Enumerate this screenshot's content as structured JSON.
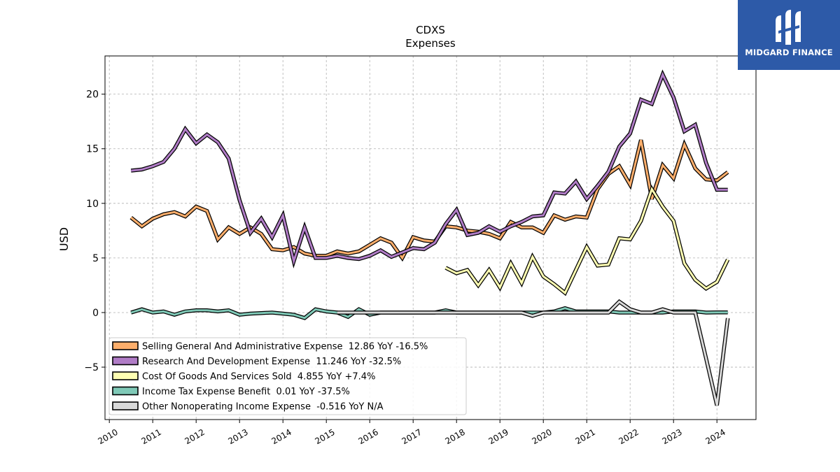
{
  "brand": {
    "name": "MIDGARD FINANCE",
    "logo_icon": "midgard-logo-icon",
    "bg_color": "#2d5aa8"
  },
  "chart_data": {
    "type": "line",
    "title": "CDXS",
    "subtitle": "Expenses",
    "ylabel": "USD",
    "xlabel": "",
    "xlim": [
      2009.9,
      2024.9
    ],
    "ylim": [
      -9.8,
      23.5
    ],
    "yticks": [
      -5,
      0,
      5,
      10,
      15,
      20
    ],
    "xticks": [
      2010,
      2011,
      2012,
      2013,
      2014,
      2015,
      2016,
      2017,
      2018,
      2019,
      2020,
      2021,
      2022,
      2023,
      2024
    ],
    "grid": true,
    "legend_position": "lower-left",
    "series": [
      {
        "name": "Selling General And Administrative Expense",
        "legend_label": "Selling General And Administrative Expense  12.86 YoY -16.5%",
        "color": "#fdae6b",
        "x": [
          2010.5,
          2010.75,
          2011.0,
          2011.25,
          2011.5,
          2011.75,
          2012.0,
          2012.25,
          2012.5,
          2012.75,
          2013.0,
          2013.25,
          2013.5,
          2013.75,
          2014.0,
          2014.25,
          2014.5,
          2014.75,
          2015.0,
          2015.25,
          2015.5,
          2015.75,
          2016.0,
          2016.25,
          2016.5,
          2016.75,
          2017.0,
          2017.25,
          2017.5,
          2017.75,
          2018.0,
          2018.25,
          2018.5,
          2018.75,
          2019.0,
          2019.25,
          2019.5,
          2019.75,
          2020.0,
          2020.25,
          2020.5,
          2020.75,
          2021.0,
          2021.25,
          2021.5,
          2021.75,
          2022.0,
          2022.25,
          2022.5,
          2022.75,
          2023.0,
          2023.25,
          2023.5,
          2023.75,
          2024.0,
          2024.25
        ],
        "y": [
          8.7,
          7.9,
          8.6,
          9.0,
          9.2,
          8.8,
          9.7,
          9.3,
          6.7,
          7.8,
          7.2,
          7.8,
          7.2,
          5.8,
          5.7,
          6.0,
          5.4,
          5.2,
          5.2,
          5.6,
          5.4,
          5.6,
          6.2,
          6.8,
          6.4,
          5.0,
          6.9,
          6.6,
          6.5,
          7.9,
          7.8,
          7.5,
          7.4,
          7.2,
          6.8,
          8.3,
          7.8,
          7.8,
          7.3,
          8.9,
          8.5,
          8.8,
          8.7,
          11.3,
          12.7,
          13.4,
          11.7,
          15.8,
          10.4,
          13.5,
          12.3,
          15.4,
          13.2,
          12.2,
          12.1,
          12.86
        ]
      },
      {
        "name": "Research And Development Expense",
        "legend_label": "Research And Development Expense  11.246 YoY -32.5%",
        "color": "#b07cc6",
        "x": [
          2010.5,
          2010.75,
          2011.0,
          2011.25,
          2011.5,
          2011.75,
          2012.0,
          2012.25,
          2012.5,
          2012.75,
          2013.0,
          2013.25,
          2013.5,
          2013.75,
          2014.0,
          2014.25,
          2014.5,
          2014.75,
          2015.0,
          2015.25,
          2015.5,
          2015.75,
          2016.0,
          2016.25,
          2016.5,
          2016.75,
          2017.0,
          2017.25,
          2017.5,
          2017.75,
          2018.0,
          2018.25,
          2018.5,
          2018.75,
          2019.0,
          2019.25,
          2019.5,
          2019.75,
          2020.0,
          2020.25,
          2020.5,
          2020.75,
          2021.0,
          2021.25,
          2021.5,
          2021.75,
          2022.0,
          2022.25,
          2022.5,
          2022.75,
          2023.0,
          2023.25,
          2023.5,
          2023.75,
          2024.0,
          2024.25
        ],
        "y": [
          13.0,
          13.1,
          13.4,
          13.8,
          15.0,
          16.8,
          15.5,
          16.3,
          15.6,
          14.1,
          10.3,
          7.3,
          8.6,
          6.9,
          8.9,
          4.7,
          7.8,
          5.0,
          5.0,
          5.2,
          5.0,
          4.9,
          5.2,
          5.7,
          5.1,
          5.5,
          5.9,
          5.8,
          6.4,
          8.1,
          9.4,
          7.1,
          7.3,
          7.9,
          7.4,
          7.9,
          8.3,
          8.8,
          8.9,
          11.0,
          10.9,
          12.0,
          10.4,
          11.6,
          12.9,
          15.2,
          16.4,
          19.5,
          19.1,
          21.8,
          19.7,
          16.6,
          17.2,
          13.7,
          11.246,
          11.246
        ]
      },
      {
        "name": "Cost Of Goods And Services Sold",
        "legend_label": "Cost Of Goods And Services Sold  4.855 YoY +7.4%",
        "color": "#ffffb2",
        "x": [
          2017.75,
          2018.0,
          2018.25,
          2018.5,
          2018.75,
          2019.0,
          2019.25,
          2019.5,
          2019.75,
          2020.0,
          2020.25,
          2020.5,
          2020.75,
          2021.0,
          2021.25,
          2021.5,
          2021.75,
          2022.0,
          2022.25,
          2022.5,
          2022.75,
          2023.0,
          2023.25,
          2023.5,
          2023.75,
          2024.0,
          2024.25
        ],
        "y": [
          4.1,
          3.6,
          3.9,
          2.5,
          3.9,
          2.3,
          4.5,
          2.7,
          5.1,
          3.3,
          2.6,
          1.8,
          3.9,
          6.0,
          4.3,
          4.4,
          6.8,
          6.7,
          8.4,
          11.3,
          9.7,
          8.4,
          4.5,
          3.0,
          2.2,
          2.8,
          4.855
        ]
      },
      {
        "name": "Income Tax Expense Benefit",
        "legend_label": "Income Tax Expense Benefit  0.01 YoY -37.5%",
        "color": "#7fc9b7",
        "x": [
          2010.5,
          2010.75,
          2011.0,
          2011.25,
          2011.5,
          2011.75,
          2012.0,
          2012.25,
          2012.5,
          2012.75,
          2013.0,
          2013.25,
          2013.5,
          2013.75,
          2014.0,
          2014.25,
          2014.5,
          2014.75,
          2015.0,
          2015.25,
          2015.5,
          2015.75,
          2016.0,
          2016.25,
          2016.5,
          2016.75,
          2017.0,
          2017.25,
          2017.5,
          2017.75,
          2018.0,
          2018.25,
          2018.5,
          2018.75,
          2019.0,
          2019.25,
          2019.5,
          2019.75,
          2020.0,
          2020.25,
          2020.5,
          2020.75,
          2021.0,
          2021.25,
          2021.5,
          2021.75,
          2022.0,
          2022.25,
          2022.5,
          2022.75,
          2023.0,
          2023.25,
          2023.5,
          2023.75,
          2024.0,
          2024.25
        ],
        "y": [
          0.0,
          0.3,
          0.0,
          0.1,
          -0.2,
          0.1,
          0.2,
          0.2,
          0.1,
          0.2,
          -0.2,
          -0.1,
          -0.05,
          0.0,
          -0.1,
          -0.2,
          -0.5,
          0.3,
          0.1,
          0.0,
          -0.4,
          0.3,
          -0.2,
          0.0,
          0.0,
          0.0,
          0.0,
          0.0,
          0.0,
          0.2,
          0.0,
          0.0,
          0.0,
          0.0,
          0.0,
          0.0,
          0.0,
          0.0,
          0.0,
          0.1,
          0.4,
          0.1,
          0.1,
          0.1,
          0.1,
          0.0,
          0.0,
          0.0,
          0.0,
          0.0,
          0.1,
          0.1,
          0.1,
          0.0,
          0.01,
          0.01
        ]
      },
      {
        "name": "Other Nonoperating Income Expense",
        "legend_label": "Other Nonoperating Income Expense  -0.516 YoY N/A",
        "color": "#d9d9d9",
        "x": [
          2015.25,
          2015.5,
          2015.75,
          2016.0,
          2016.25,
          2016.5,
          2016.75,
          2017.0,
          2017.25,
          2017.5,
          2017.75,
          2018.0,
          2018.25,
          2018.5,
          2018.75,
          2019.0,
          2019.25,
          2019.5,
          2019.75,
          2020.0,
          2020.25,
          2020.5,
          2020.75,
          2021.0,
          2021.25,
          2021.5,
          2021.75,
          2022.0,
          2022.25,
          2022.5,
          2022.75,
          2023.0,
          2023.25,
          2023.5,
          2023.75,
          2024.0,
          2024.25
        ],
        "y": [
          0.0,
          0.0,
          0.0,
          0.0,
          0.0,
          0.0,
          0.0,
          0.0,
          0.0,
          0.0,
          0.0,
          0.0,
          0.0,
          0.0,
          0.0,
          0.0,
          0.0,
          0.0,
          -0.3,
          0.0,
          0.0,
          0.0,
          0.0,
          0.0,
          0.0,
          0.0,
          1.0,
          0.3,
          0.0,
          0.0,
          0.3,
          0.0,
          0.0,
          0.0,
          -4.2,
          -8.5,
          -0.516
        ]
      }
    ]
  }
}
